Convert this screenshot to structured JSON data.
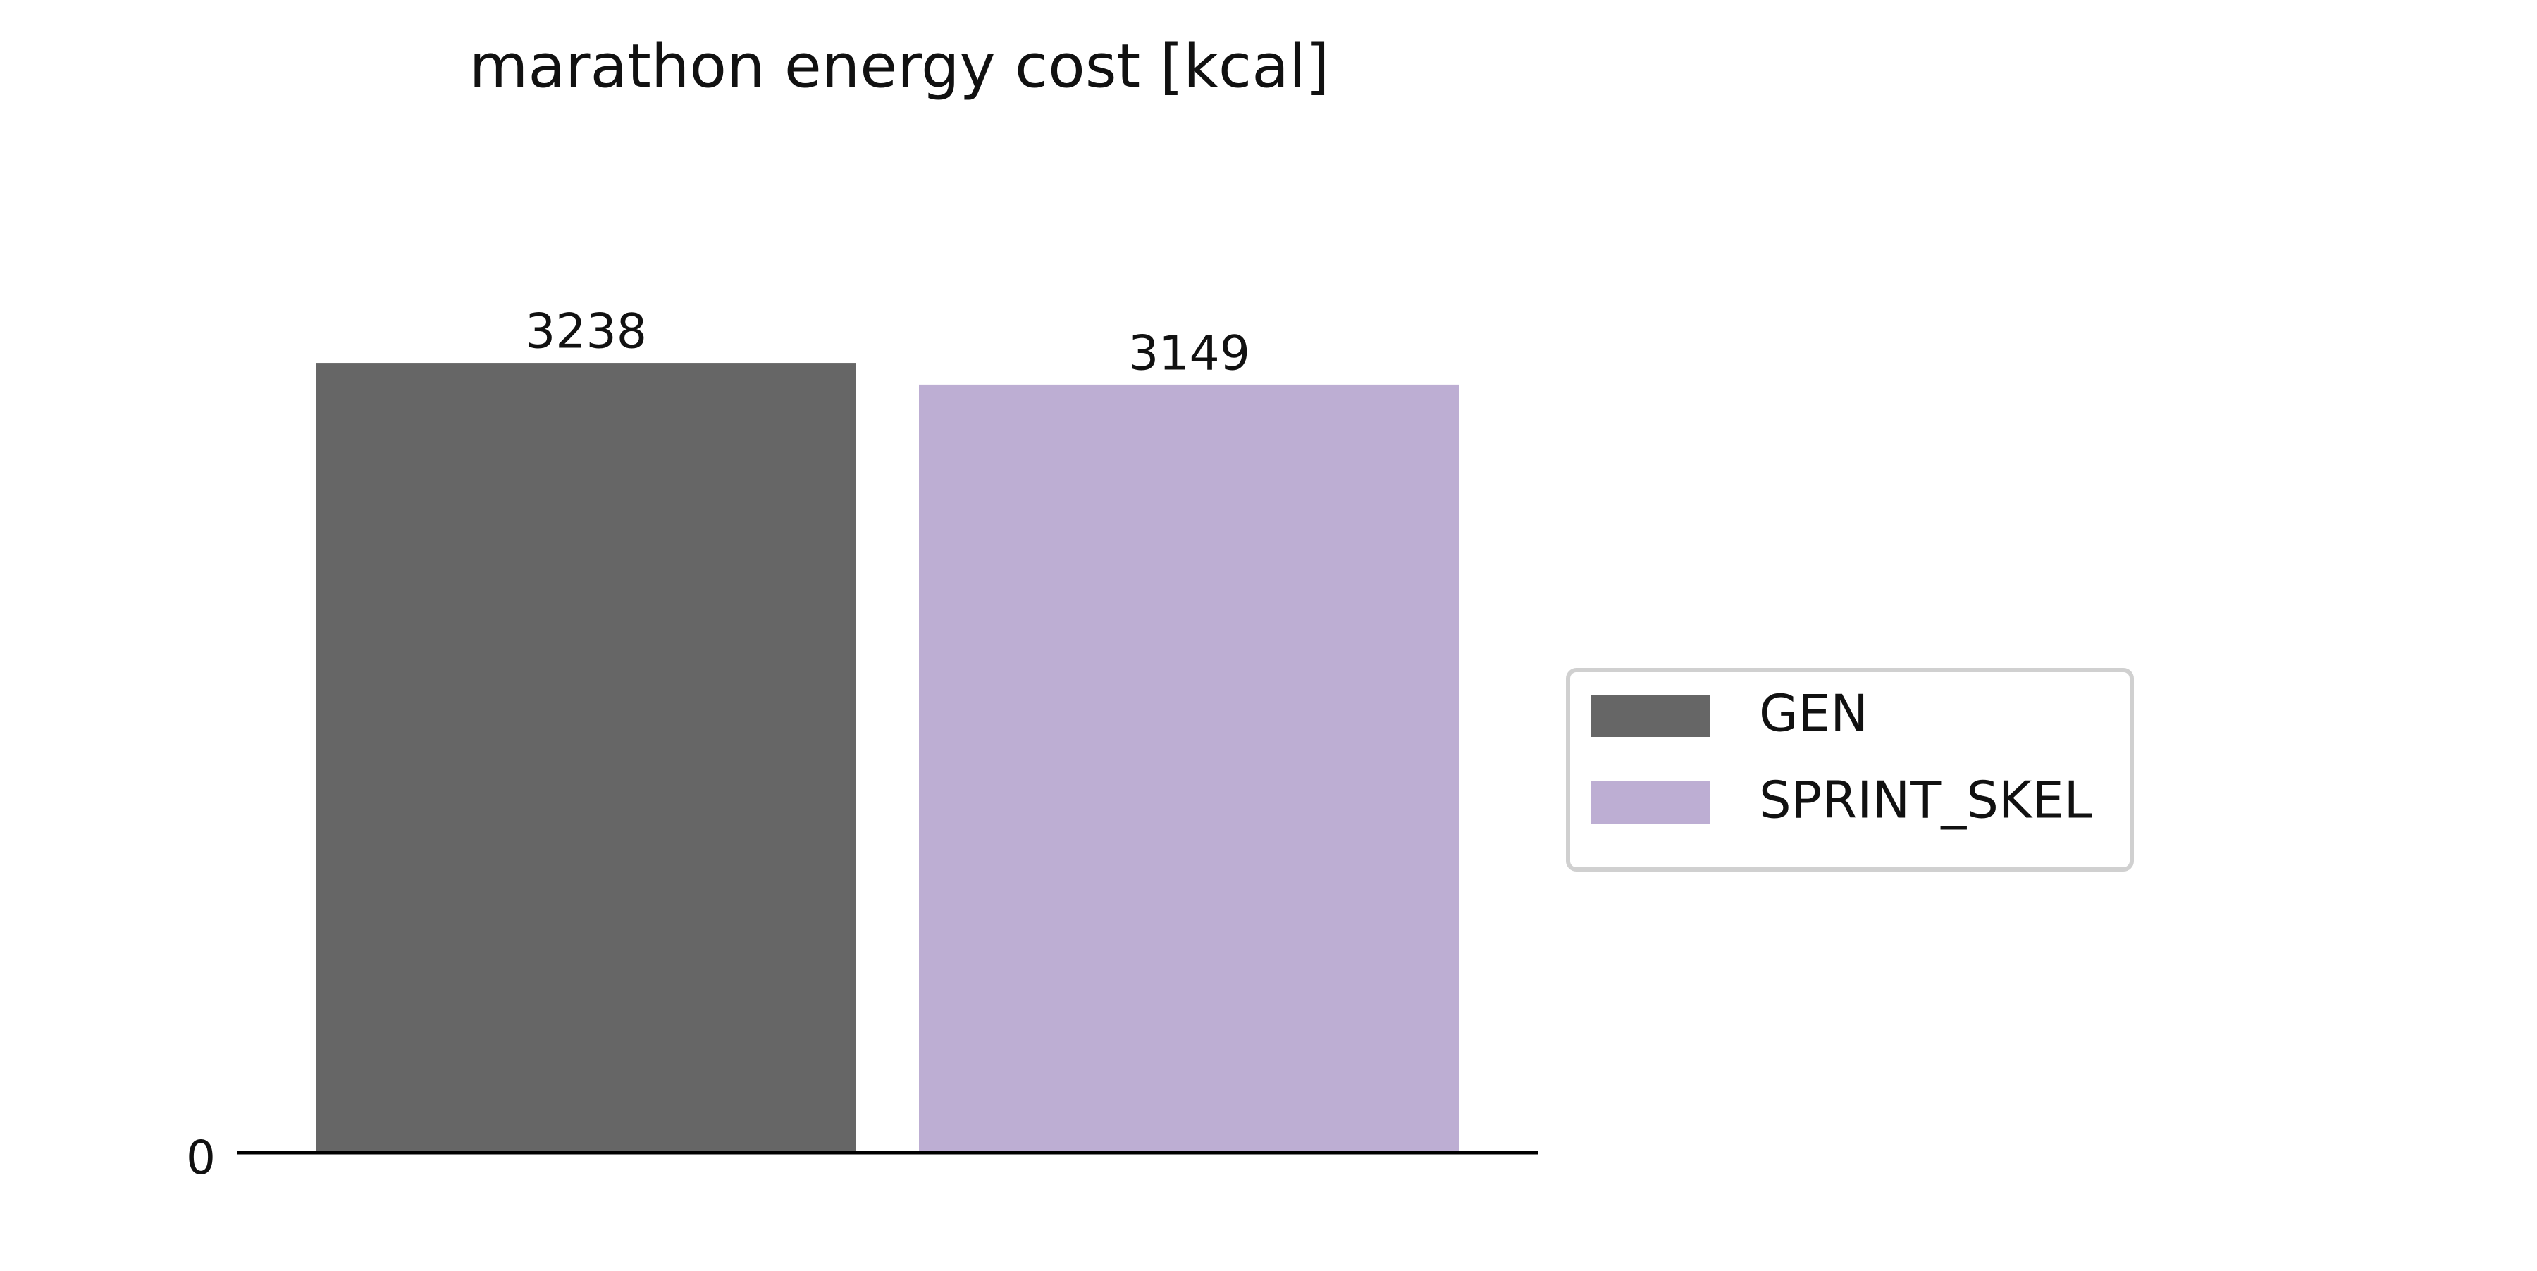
{
  "chart_data": {
    "type": "bar",
    "title": "marathon energy cost [kcal]",
    "categories": [
      null
    ],
    "series": [
      {
        "name": "GEN",
        "color": "#666666",
        "values": [
          3238
        ]
      },
      {
        "name": "SPRINT_SKEL",
        "color": "#bdaed3",
        "values": [
          3149
        ]
      }
    ],
    "ylim": [
      0,
      3400
    ],
    "yticks": [
      0
    ],
    "grid": false,
    "legend": "right"
  }
}
